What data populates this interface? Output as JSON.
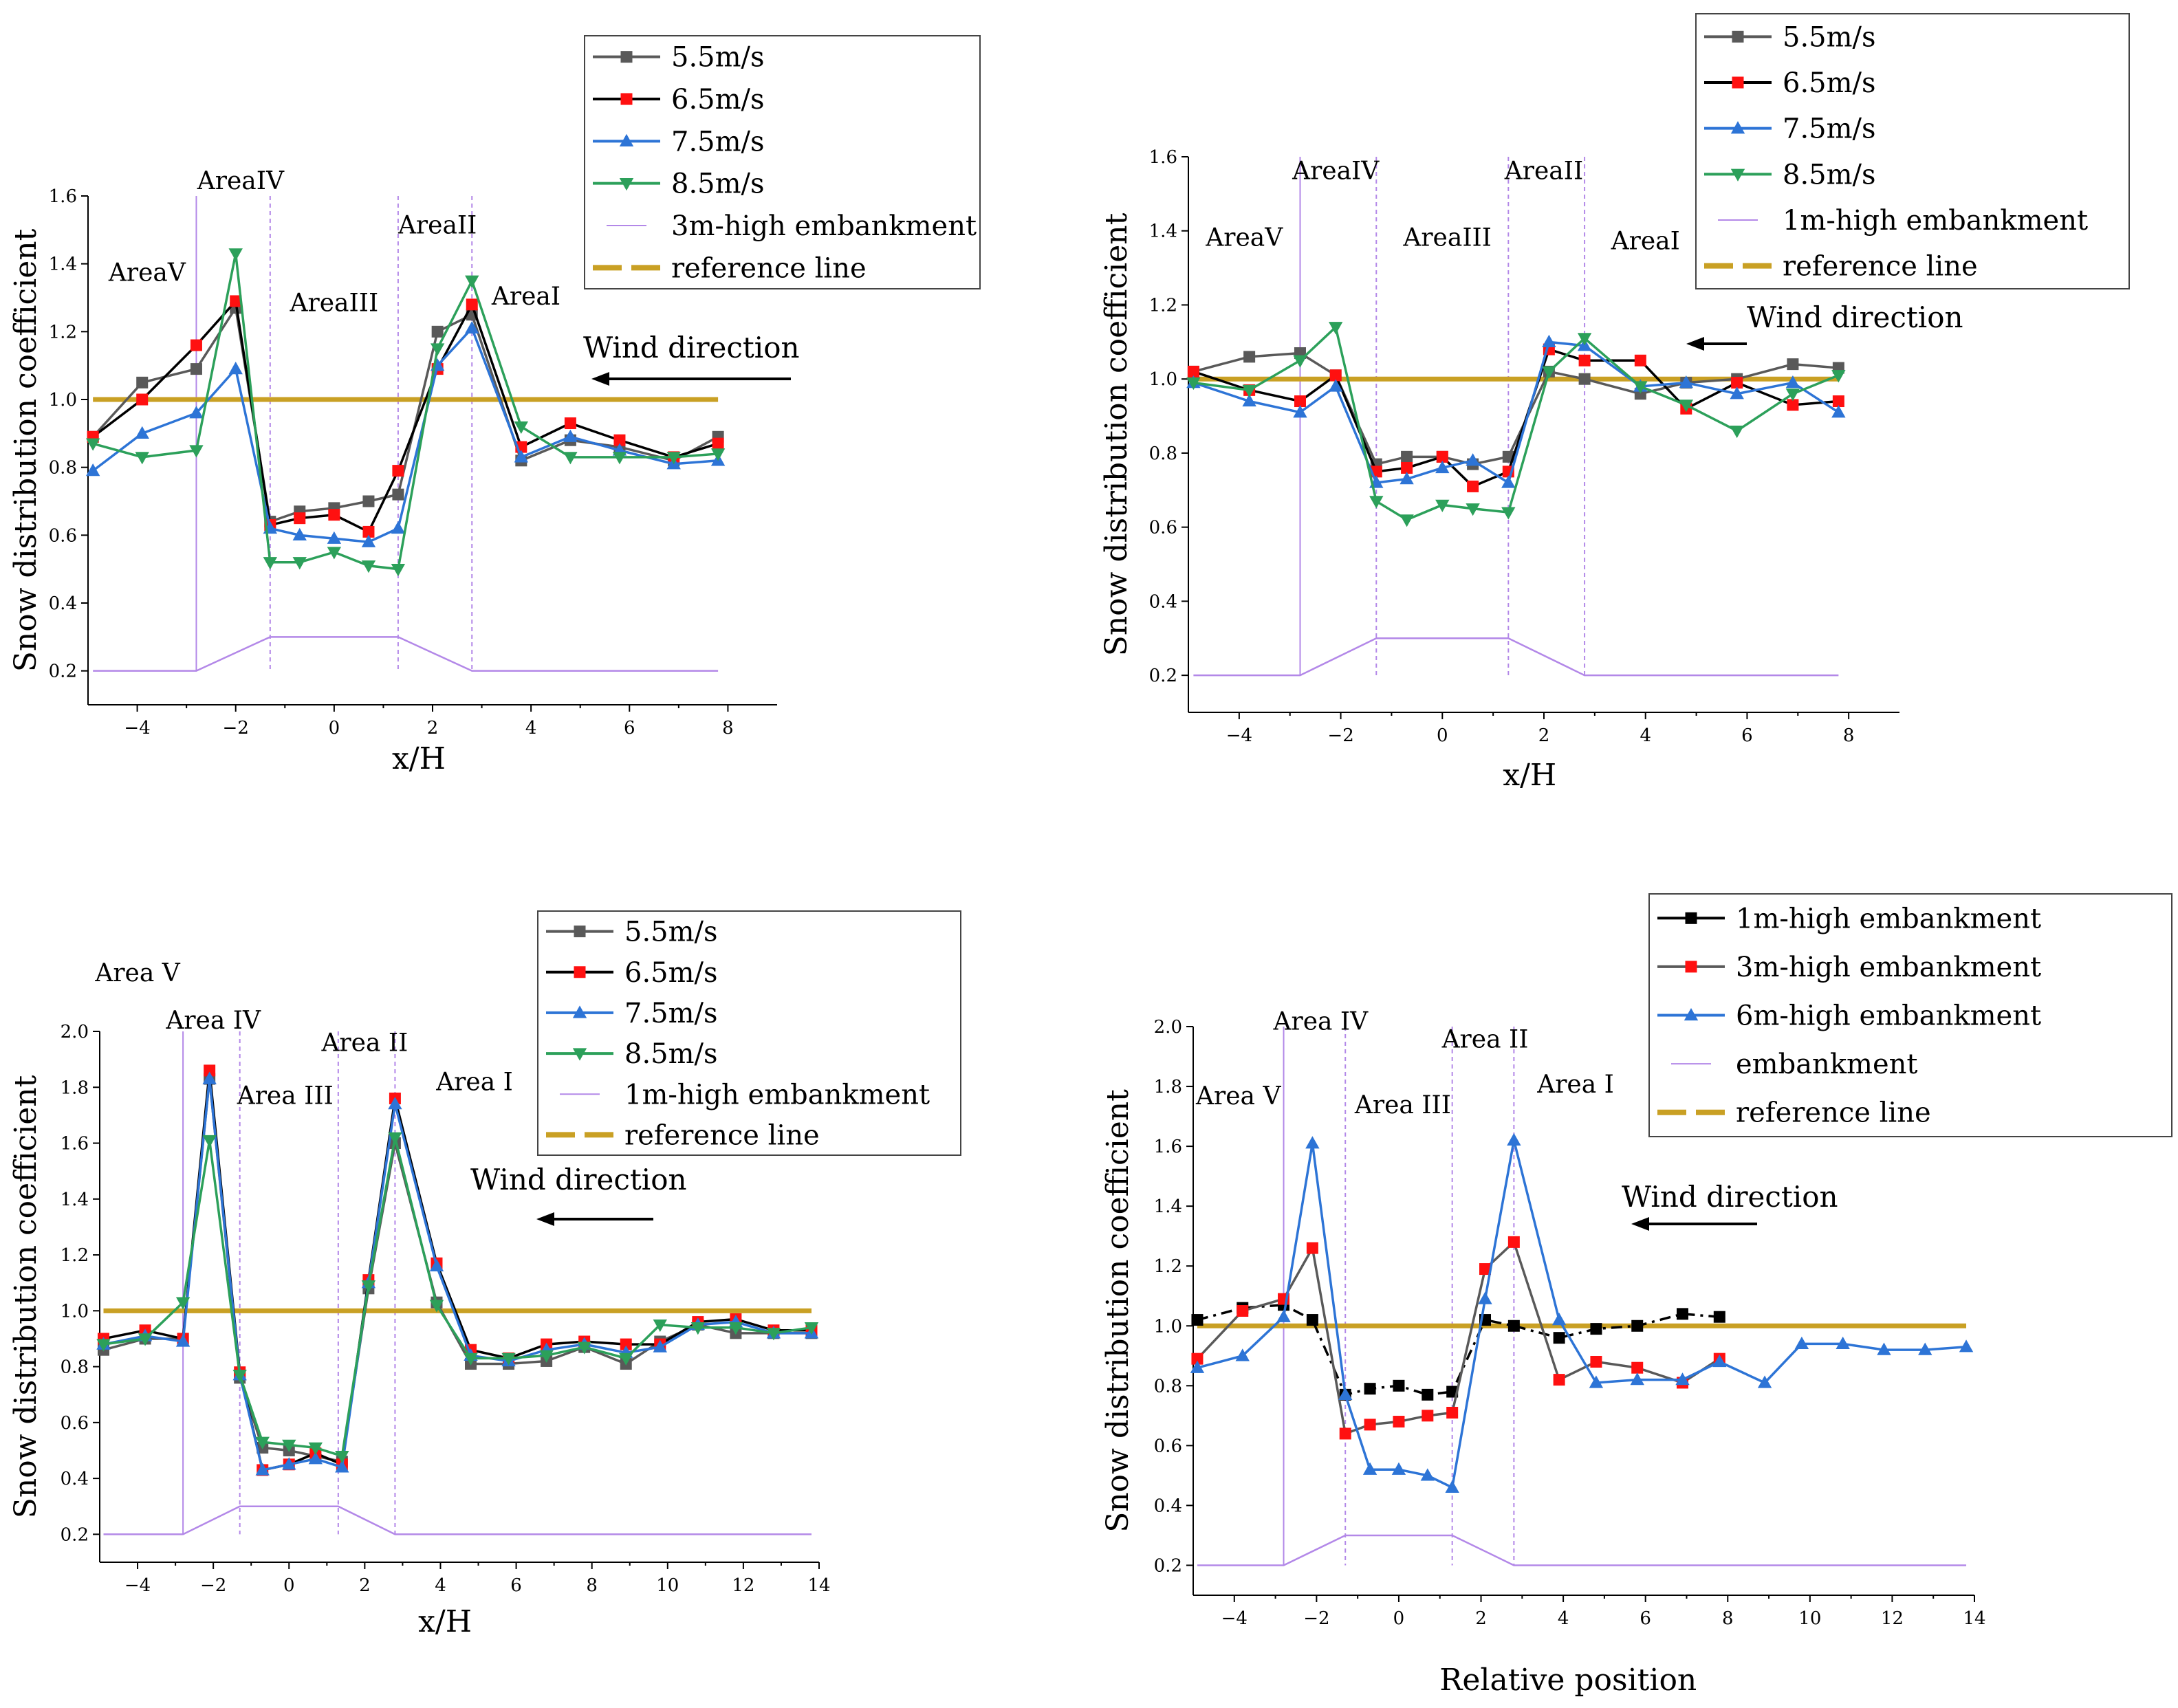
{
  "figure": {
    "background": "#ffffff"
  },
  "colors": {
    "5.5m/s": "#595959",
    "6.5m/s": "#000000",
    "7.5m/s": "#2d74d6",
    "8.5m/s": "#2ca05a",
    "embankment": "#b388e8",
    "reference": "#c9a024",
    "marker_red": "#ff1010"
  },
  "chart_data": [
    {
      "type": "line",
      "title": "",
      "xlabel": "x/H",
      "ylabel": "Snow distribution coefficient",
      "xlim": [
        -5,
        9
      ],
      "ylim": [
        0.1,
        1.6
      ],
      "xticks": [
        -4,
        -2,
        0,
        2,
        4,
        6,
        8
      ],
      "xtick_labels": [
        "−4",
        "−2",
        "0",
        "2",
        "4",
        "6",
        "8"
      ],
      "yticks": [
        0.2,
        0.4,
        0.6,
        0.8,
        1.0,
        1.2,
        1.4,
        1.6
      ],
      "ytick_labels": [
        "0.2",
        "0.4",
        "0.6",
        "0.8",
        "1.0",
        "1.2",
        "1.4",
        "1.6"
      ],
      "x": [
        -4.9,
        -3.9,
        -2.8,
        -2.0,
        -1.3,
        -0.7,
        0,
        0.7,
        1.3,
        2.1,
        2.8,
        3.8,
        4.8,
        5.8,
        6.9,
        7.8
      ],
      "series": [
        {
          "name": "5.5m/s",
          "values": [
            0.89,
            1.05,
            1.09,
            1.27,
            0.64,
            0.67,
            0.68,
            0.7,
            0.72,
            1.2,
            1.25,
            0.82,
            0.88,
            0.86,
            0.82,
            0.89
          ]
        },
        {
          "name": "6.5m/s",
          "values": [
            0.89,
            1.0,
            1.16,
            1.29,
            0.63,
            0.65,
            0.66,
            0.61,
            0.79,
            1.09,
            1.28,
            0.86,
            0.93,
            0.88,
            0.83,
            0.87
          ]
        },
        {
          "name": "7.5m/s",
          "values": [
            0.79,
            0.9,
            0.96,
            1.09,
            0.62,
            0.6,
            0.59,
            0.58,
            0.62,
            1.1,
            1.21,
            0.83,
            0.89,
            0.85,
            0.81,
            0.82
          ]
        },
        {
          "name": "8.5m/s",
          "values": [
            0.87,
            0.83,
            0.85,
            1.43,
            0.52,
            0.52,
            0.55,
            0.51,
            0.5,
            1.15,
            1.35,
            0.92,
            0.83,
            0.83,
            0.83,
            0.84
          ]
        }
      ],
      "embankment_line": {
        "x": [
          -4.9,
          -2.8,
          -1.3,
          1.3,
          2.8,
          7.8
        ],
        "values": [
          0.2,
          0.2,
          0.3,
          0.3,
          0.2,
          0.2
        ]
      },
      "reference_line": {
        "x": [
          -4.9,
          7.8
        ],
        "values": [
          1.0,
          1.0
        ]
      },
      "boundaries_x": [
        -2.8,
        -1.3,
        1.3,
        2.8
      ],
      "area_labels": [
        {
          "text": "AreaV",
          "x": -3.8,
          "y": 1.35
        },
        {
          "text": "AreaIV",
          "x": -1.9,
          "y": 1.62
        },
        {
          "text": "AreaIII",
          "x": 0,
          "y": 1.26
        },
        {
          "text": "AreaII",
          "x": 2.1,
          "y": 1.49
        },
        {
          "text": "AreaI",
          "x": 3.9,
          "y": 1.28
        }
      ],
      "wind_label": "Wind direction",
      "legend": {
        "position": "top-right",
        "entries": [
          "5.5m/s",
          "6.5m/s",
          "7.5m/s",
          "8.5m/s",
          "3m-high embankment",
          "reference line"
        ]
      }
    },
    {
      "type": "line",
      "title": "",
      "xlabel": "x/H",
      "ylabel": "Snow distribution coefficient",
      "xlim": [
        -5,
        9
      ],
      "ylim": [
        0.1,
        1.6
      ],
      "xticks": [
        -4,
        -2,
        0,
        2,
        4,
        6,
        8
      ],
      "xtick_labels": [
        "−4",
        "−2",
        "0",
        "2",
        "4",
        "6",
        "8"
      ],
      "yticks": [
        0.2,
        0.4,
        0.6,
        0.8,
        1.0,
        1.2,
        1.4,
        1.6
      ],
      "ytick_labels": [
        "0.2",
        "0.4",
        "0.6",
        "0.8",
        "1.0",
        "1.2",
        "1.4",
        "1.6"
      ],
      "x": [
        -4.9,
        -3.8,
        -2.8,
        -2.1,
        -1.3,
        -0.7,
        0,
        0.6,
        1.3,
        2.1,
        2.8,
        3.9,
        4.8,
        5.8,
        6.9,
        7.8
      ],
      "series": [
        {
          "name": "5.5m/s",
          "values": [
            1.02,
            1.06,
            1.07,
            1.01,
            0.77,
            0.79,
            0.79,
            0.77,
            0.79,
            1.02,
            1.0,
            0.96,
            0.99,
            1.0,
            1.04,
            1.03
          ]
        },
        {
          "name": "6.5m/s",
          "values": [
            1.02,
            0.97,
            0.94,
            1.01,
            0.75,
            0.76,
            0.79,
            0.71,
            0.75,
            1.08,
            1.05,
            1.05,
            0.92,
            0.99,
            0.93,
            0.94
          ]
        },
        {
          "name": "7.5m/s",
          "values": [
            0.99,
            0.94,
            0.91,
            0.98,
            0.72,
            0.73,
            0.76,
            0.78,
            0.72,
            1.1,
            1.09,
            0.98,
            0.99,
            0.96,
            0.99,
            0.91
          ]
        },
        {
          "name": "8.5m/s",
          "values": [
            0.99,
            0.97,
            1.05,
            1.14,
            0.67,
            0.62,
            0.66,
            0.65,
            0.64,
            1.02,
            1.11,
            0.98,
            0.93,
            0.86,
            0.96,
            1.01
          ]
        }
      ],
      "embankment_line": {
        "x": [
          -4.9,
          -2.8,
          -1.3,
          1.3,
          2.8,
          7.8
        ],
        "values": [
          0.2,
          0.2,
          0.3,
          0.3,
          0.2,
          0.2
        ]
      },
      "reference_line": {
        "x": [
          -4.9,
          7.8
        ],
        "values": [
          1.0,
          1.0
        ]
      },
      "boundaries_x": [
        -2.8,
        -1.3,
        1.3,
        2.8
      ],
      "area_labels": [
        {
          "text": "AreaV",
          "x": -3.9,
          "y": 1.36
        },
        {
          "text": "AreaIV",
          "x": -2.1,
          "y": 1.54
        },
        {
          "text": "AreaIII",
          "x": 0.1,
          "y": 1.36
        },
        {
          "text": "AreaII",
          "x": 2.0,
          "y": 1.54
        },
        {
          "text": "AreaI",
          "x": 4.0,
          "y": 1.35
        }
      ],
      "wind_label": "Wind direction",
      "legend": {
        "position": "top-right",
        "entries": [
          "5.5m/s",
          "6.5m/s",
          "7.5m/s",
          "8.5m/s",
          "1m-high embankment",
          "reference line"
        ]
      }
    },
    {
      "type": "line",
      "title": "",
      "xlabel": "x/H",
      "ylabel": "Snow distribution coefficient",
      "xlim": [
        -5,
        14
      ],
      "ylim": [
        0.1,
        2.0
      ],
      "xticks": [
        -4,
        -2,
        0,
        2,
        4,
        6,
        8,
        10,
        12,
        14
      ],
      "xtick_labels": [
        "−4",
        "−2",
        "0",
        "2",
        "4",
        "6",
        "8",
        "10",
        "12",
        "14"
      ],
      "yticks": [
        0.2,
        0.4,
        0.6,
        0.8,
        1.0,
        1.2,
        1.4,
        1.6,
        1.8,
        2.0
      ],
      "ytick_labels": [
        "0.2",
        "0.4",
        "0.6",
        "0.8",
        "1.0",
        "1.2",
        "1.4",
        "1.6",
        "1.8",
        "2.0"
      ],
      "x": [
        -4.9,
        -3.8,
        -2.8,
        -2.1,
        -1.3,
        -0.7,
        0,
        0.7,
        1.4,
        2.1,
        2.8,
        3.9,
        4.8,
        5.8,
        6.8,
        7.8,
        8.9,
        9.8,
        10.8,
        11.8,
        12.8,
        13.8
      ],
      "series": [
        {
          "name": "5.5m/s",
          "values": [
            0.86,
            0.9,
            0.9,
            1.83,
            0.76,
            0.51,
            0.5,
            0.48,
            0.46,
            1.08,
            1.6,
            1.03,
            0.81,
            0.81,
            0.82,
            0.87,
            0.81,
            0.89,
            0.95,
            0.92,
            0.92,
            0.92
          ]
        },
        {
          "name": "6.5m/s",
          "values": [
            0.9,
            0.93,
            0.9,
            1.86,
            0.78,
            0.43,
            0.45,
            0.49,
            0.45,
            1.11,
            1.76,
            1.17,
            0.86,
            0.83,
            0.88,
            0.89,
            0.88,
            0.88,
            0.96,
            0.97,
            0.93,
            0.93
          ]
        },
        {
          "name": "7.5m/s",
          "values": [
            0.88,
            0.91,
            0.89,
            1.83,
            0.77,
            0.43,
            0.45,
            0.47,
            0.44,
            1.1,
            1.74,
            1.16,
            0.84,
            0.82,
            0.86,
            0.88,
            0.85,
            0.87,
            0.95,
            0.96,
            0.92,
            0.92
          ]
        },
        {
          "name": "8.5m/s",
          "values": [
            0.88,
            0.9,
            1.03,
            1.61,
            0.77,
            0.53,
            0.52,
            0.51,
            0.48,
            1.09,
            1.62,
            1.02,
            0.83,
            0.83,
            0.84,
            0.87,
            0.83,
            0.95,
            0.94,
            0.94,
            0.92,
            0.94
          ]
        }
      ],
      "embankment_line": {
        "x": [
          -4.9,
          -2.8,
          -1.3,
          1.3,
          2.8,
          13.8
        ],
        "values": [
          0.2,
          0.2,
          0.3,
          0.3,
          0.2,
          0.2
        ]
      },
      "reference_line": {
        "x": [
          -4.9,
          13.8
        ],
        "values": [
          1.0,
          1.0
        ]
      },
      "boundaries_x": [
        -2.8,
        -1.3,
        1.3,
        2.8
      ],
      "area_labels": [
        {
          "text": "Area V",
          "x": -4.0,
          "y": 2.18
        },
        {
          "text": "Area IV",
          "x": -2.0,
          "y": 2.01
        },
        {
          "text": "Area III",
          "x": -0.1,
          "y": 1.74
        },
        {
          "text": "Area II",
          "x": 2.0,
          "y": 1.93
        },
        {
          "text": "Area I",
          "x": 4.9,
          "y": 1.79
        }
      ],
      "wind_label": "Wind direction",
      "legend": {
        "position": "top-right",
        "entries": [
          "5.5m/s",
          "6.5m/s",
          "7.5m/s",
          "8.5m/s",
          "1m-high embankment",
          "reference line"
        ]
      }
    },
    {
      "type": "line",
      "title": "",
      "xlabel": "Relative position",
      "ylabel": "Snow distribution coefficient",
      "xlim": [
        -5,
        14
      ],
      "ylim": [
        0.1,
        2.0
      ],
      "xticks": [
        -4,
        -2,
        0,
        2,
        4,
        6,
        8,
        10,
        12,
        14
      ],
      "xtick_labels": [
        "−4",
        "−2",
        "0",
        "2",
        "4",
        "6",
        "8",
        "10",
        "12",
        "14"
      ],
      "yticks": [
        0.2,
        0.4,
        0.6,
        0.8,
        1.0,
        1.2,
        1.4,
        1.6,
        1.8,
        2.0
      ],
      "ytick_labels": [
        "0.2",
        "0.4",
        "0.6",
        "0.8",
        "1.0",
        "1.2",
        "1.4",
        "1.6",
        "1.8",
        "2.0"
      ],
      "series": [
        {
          "name": "1m-high embankment",
          "x": [
            -4.9,
            -3.8,
            -2.8,
            -2.1,
            -1.3,
            -0.7,
            0,
            0.7,
            1.3,
            2.1,
            2.8,
            3.9,
            4.8,
            5.8,
            6.9,
            7.8
          ],
          "values": [
            1.02,
            1.06,
            1.07,
            1.02,
            0.77,
            0.79,
            0.8,
            0.77,
            0.78,
            1.02,
            1.0,
            0.96,
            0.99,
            1.0,
            1.04,
            1.03
          ]
        },
        {
          "name": "3m-high embankment",
          "x": [
            -4.9,
            -3.8,
            -2.8,
            -2.1,
            -1.3,
            -0.7,
            0,
            0.7,
            1.3,
            2.1,
            2.8,
            3.9,
            4.8,
            5.8,
            6.9,
            7.8
          ],
          "values": [
            0.89,
            1.05,
            1.09,
            1.26,
            0.64,
            0.67,
            0.68,
            0.7,
            0.71,
            1.19,
            1.28,
            0.82,
            0.88,
            0.86,
            0.81,
            0.89
          ]
        },
        {
          "name": "6m-high embankment",
          "x": [
            -4.9,
            -3.8,
            -2.8,
            -2.1,
            -1.3,
            -0.7,
            0,
            0.7,
            1.3,
            2.1,
            2.8,
            3.9,
            4.8,
            5.8,
            6.9,
            7.8,
            8.9,
            9.8,
            10.8,
            11.8,
            12.8,
            13.8
          ],
          "values": [
            0.86,
            0.9,
            1.03,
            1.61,
            0.77,
            0.52,
            0.52,
            0.5,
            0.46,
            1.09,
            1.62,
            1.02,
            0.81,
            0.82,
            0.82,
            0.88,
            0.81,
            0.94,
            0.94,
            0.92,
            0.92,
            0.93
          ]
        }
      ],
      "embankment_line": {
        "x": [
          -4.9,
          -2.8,
          -1.3,
          1.3,
          2.8,
          13.8
        ],
        "values": [
          0.2,
          0.2,
          0.3,
          0.3,
          0.2,
          0.2
        ]
      },
      "reference_line": {
        "x": [
          -4.9,
          13.8
        ],
        "values": [
          1.0,
          1.0
        ]
      },
      "boundaries_x": [
        -2.8,
        -1.3,
        1.3,
        2.8
      ],
      "area_labels": [
        {
          "text": "Area V",
          "x": -3.9,
          "y": 1.74
        },
        {
          "text": "Area IV",
          "x": -1.9,
          "y": 1.99
        },
        {
          "text": "Area III",
          "x": 0.1,
          "y": 1.71
        },
        {
          "text": "Area II",
          "x": 2.1,
          "y": 1.93
        },
        {
          "text": "Area I",
          "x": 4.3,
          "y": 1.78
        }
      ],
      "wind_label": "Wind direction",
      "legend": {
        "position": "top-right",
        "entries": [
          "1m-high embankment",
          "3m-high embankment",
          "6m-high embankment",
          "embankment",
          "reference line"
        ]
      }
    }
  ]
}
